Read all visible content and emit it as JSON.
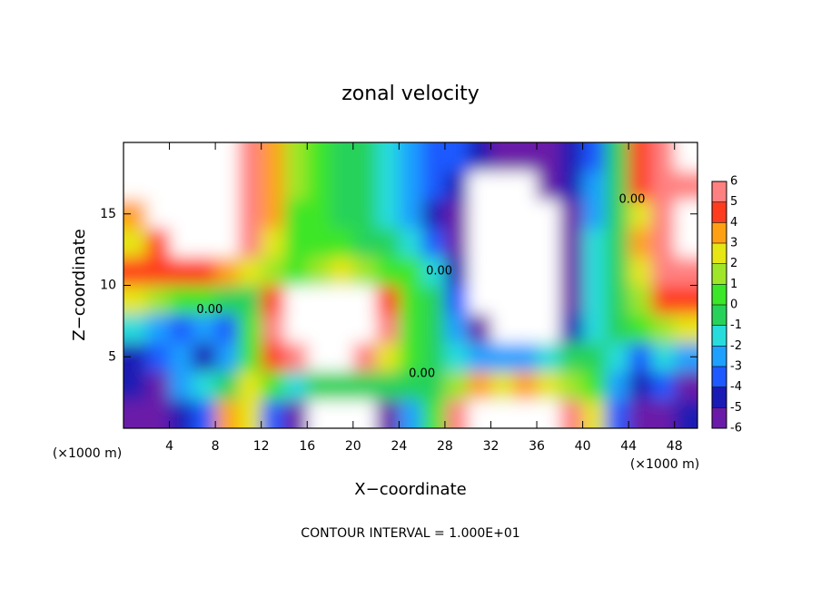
{
  "chart_data": {
    "type": "contour",
    "title": "zonal velocity",
    "xlabel": "X−coordinate",
    "ylabel": "Z−coordinate",
    "x_unit_left": "(×1000 m)",
    "x_unit_right": "(×1000 m)",
    "footer": "CONTOUR INTERVAL = 1.000E+01",
    "xlim": [
      0,
      50
    ],
    "ylim": [
      0,
      20
    ],
    "xticks": [
      4,
      8,
      12,
      16,
      20,
      24,
      28,
      32,
      36,
      40,
      44,
      48
    ],
    "yticks": [
      5,
      10,
      15
    ],
    "x": [
      1,
      3,
      5,
      7,
      9,
      11,
      13,
      15,
      17,
      19,
      21,
      23,
      25,
      27,
      29,
      31,
      33,
      35,
      37,
      39,
      41,
      43,
      45,
      47,
      49
    ],
    "y": [
      1,
      3,
      5,
      7,
      9,
      11,
      13,
      15,
      17,
      19
    ],
    "z": [
      [
        -5,
        -5,
        -4,
        -3,
        4,
        3,
        -3,
        -6,
        -8,
        -10,
        -8,
        -6,
        -2,
        1,
        6,
        10,
        8,
        10,
        10,
        6,
        3,
        -3,
        -5,
        -5,
        -4
      ],
      [
        -4,
        -5,
        -2,
        -1,
        0,
        3,
        0.5,
        -1,
        -0.5,
        0,
        -0.5,
        0,
        0,
        0,
        2,
        4,
        3,
        4,
        3,
        2,
        0.5,
        -2,
        -4,
        -3,
        -5
      ],
      [
        -4,
        -3,
        -2,
        -4,
        -2,
        0.5,
        5,
        6,
        8,
        10,
        6,
        3,
        1,
        0,
        -1,
        -2,
        -2,
        -2,
        -1,
        0,
        0,
        -1,
        -3,
        -1,
        -2
      ],
      [
        -1,
        -2,
        -3,
        -2,
        -3,
        1,
        6,
        10,
        10,
        10,
        10,
        6,
        1,
        0,
        -2,
        -5,
        -8,
        -8,
        -7,
        -4,
        -1,
        0,
        1,
        2,
        3
      ],
      [
        3,
        2,
        1,
        0.5,
        0,
        0,
        5,
        10,
        10,
        10,
        10,
        5,
        1,
        0,
        -3,
        -10,
        -12,
        -12,
        -10,
        -5,
        -1,
        0,
        2,
        5,
        5
      ],
      [
        5,
        5,
        5,
        5,
        4,
        3,
        2,
        1,
        2,
        3,
        2,
        1,
        0.5,
        -1,
        -4,
        -10,
        -13,
        -12,
        -10,
        -5,
        -1,
        0,
        3,
        6,
        6
      ],
      [
        3,
        5,
        10,
        10,
        8,
        6,
        3,
        1,
        1,
        0.5,
        0,
        -0.5,
        -1.5,
        -3,
        -5,
        -10,
        -13,
        -12,
        -10,
        -5,
        -1.5,
        0,
        4,
        6,
        8
      ],
      [
        4,
        10,
        10,
        10,
        10,
        6,
        4,
        1,
        0.5,
        0,
        -0.5,
        -1.5,
        -2.5,
        -4,
        -6,
        -10,
        -12,
        -12,
        -10,
        -5,
        -2,
        0,
        3,
        6,
        10
      ],
      [
        10,
        10,
        10,
        10,
        10,
        6,
        4,
        1.5,
        0.5,
        0,
        -0.5,
        -1.5,
        -2.5,
        -3.5,
        -4.5,
        -8,
        -10,
        -10,
        -6,
        -4.5,
        -2,
        0,
        5,
        6,
        5.5
      ],
      [
        10,
        10,
        10,
        10,
        10,
        6,
        4,
        1.5,
        0.5,
        0,
        -0.5,
        -1.5,
        -2.5,
        -3,
        -3.5,
        -4,
        -5,
        -5.5,
        -5,
        -4.5,
        -3,
        0,
        5,
        6,
        8
      ]
    ],
    "levels": [
      -6,
      -5,
      -4,
      -3,
      -2,
      -1,
      0,
      1,
      2,
      3,
      4,
      5,
      6
    ],
    "colors": [
      "#6a1aa8",
      "#1a1ab4",
      "#1e5aff",
      "#1ea0ff",
      "#28dcdc",
      "#28d25a",
      "#3ce628",
      "#a0e628",
      "#e6e614",
      "#ffa014",
      "#ff3c1e",
      "#ff8080"
    ],
    "out_of_range_color": "#ffffff",
    "contour_labels": [
      {
        "text": "0.00",
        "x": 7.5,
        "y": 8.3
      },
      {
        "text": "0.00",
        "x": 26,
        "y": 3.8
      },
      {
        "text": "0.00",
        "x": 27.5,
        "y": 11
      },
      {
        "text": "0.00",
        "x": 44.3,
        "y": 16
      }
    ]
  }
}
